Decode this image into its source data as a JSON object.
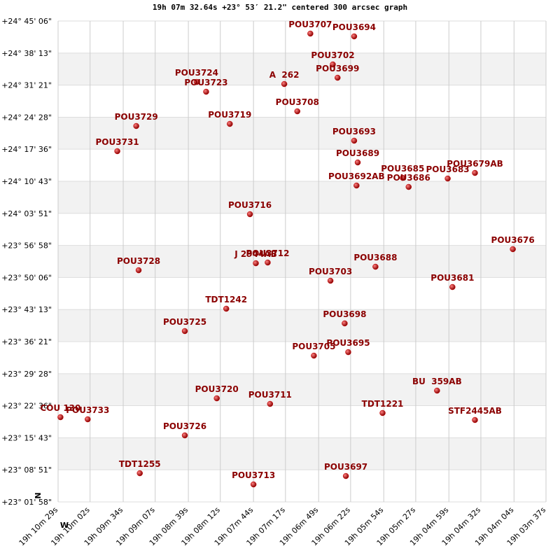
{
  "chart_data": {
    "type": "scatter",
    "title": "19h 07m 32.64s +23° 53′ 21.2\" centered 300 arcsec graph",
    "north": "N",
    "west": "W",
    "marker_color": "#cc0000",
    "label_color": "#8b0000",
    "band_color": "#f2f2f2",
    "grid": true,
    "xlim": [
      69029,
      68617
    ],
    "xticks": [
      {
        "value": 69029,
        "label": "19h 10m 29s"
      },
      {
        "value": 69002,
        "label": "19h 10m 02s"
      },
      {
        "value": 68974,
        "label": "19h 09m 34s"
      },
      {
        "value": 68947,
        "label": "19h 09m 07s"
      },
      {
        "value": 68919,
        "label": "19h 08m 39s"
      },
      {
        "value": 68892,
        "label": "19h 08m 12s"
      },
      {
        "value": 68864,
        "label": "19h 07m 44s"
      },
      {
        "value": 68837,
        "label": "19h 07m 17s"
      },
      {
        "value": 68809,
        "label": "19h 06m 49s"
      },
      {
        "value": 68782,
        "label": "19h 06m 22s"
      },
      {
        "value": 68754,
        "label": "19h 05m 54s"
      },
      {
        "value": 68727,
        "label": "19h 05m 27s"
      },
      {
        "value": 68699,
        "label": "19h 04m 59s"
      },
      {
        "value": 68672,
        "label": "19h 04m 32s"
      },
      {
        "value": 68644,
        "label": "19h 04m 04s"
      },
      {
        "value": 68617,
        "label": "19h 03m 37s"
      }
    ],
    "ylim": [
      82918,
      89106
    ],
    "yticks": [
      {
        "value": 89106,
        "label": "+24° 45' 06\""
      },
      {
        "value": 88693,
        "label": "+24° 38' 13\""
      },
      {
        "value": 88281,
        "label": "+24° 31' 21\""
      },
      {
        "value": 87868,
        "label": "+24° 24' 28\""
      },
      {
        "value": 87456,
        "label": "+24° 17' 36\""
      },
      {
        "value": 87043,
        "label": "+24° 10' 43\""
      },
      {
        "value": 86631,
        "label": "+24° 03' 51\""
      },
      {
        "value": 86218,
        "label": "+23° 56' 58\""
      },
      {
        "value": 85806,
        "label": "+23° 50' 06\""
      },
      {
        "value": 85393,
        "label": "+23° 43' 13\""
      },
      {
        "value": 84981,
        "label": "+23° 36' 21\""
      },
      {
        "value": 84568,
        "label": "+23° 29' 28\""
      },
      {
        "value": 84156,
        "label": "+23° 22' 36\""
      },
      {
        "value": 83743,
        "label": "+23° 15' 43\""
      },
      {
        "value": 83331,
        "label": "+23° 08' 51\""
      },
      {
        "value": 82918,
        "label": "+23° 01' 58\""
      }
    ],
    "points": [
      {
        "label": "POU3707",
        "x": 68816,
        "y": 88944
      },
      {
        "label": "POU3694",
        "x": 68779,
        "y": 88908
      },
      {
        "label": "POU3702",
        "x": 68797,
        "y": 88547
      },
      {
        "label": "POU3699",
        "x": 68793,
        "y": 88376
      },
      {
        "label": "A  262",
        "x": 68838,
        "y": 88295
      },
      {
        "label": "POU3724",
        "x": 68912,
        "y": 88322
      },
      {
        "label": "POU3723",
        "x": 68904,
        "y": 88196
      },
      {
        "label": "POU3708",
        "x": 68827,
        "y": 87944
      },
      {
        "label": "POU3719",
        "x": 68884,
        "y": 87782
      },
      {
        "label": "POU3729",
        "x": 68963,
        "y": 87755
      },
      {
        "label": "POU3731",
        "x": 68979,
        "y": 87431
      },
      {
        "label": "POU3693",
        "x": 68779,
        "y": 87566
      },
      {
        "label": "POU3689",
        "x": 68776,
        "y": 87286
      },
      {
        "label": "POU3692AB",
        "x": 68777,
        "y": 86989
      },
      {
        "label": "POU3685",
        "x": 68738,
        "y": 87088
      },
      {
        "label": "POU3686",
        "x": 68733,
        "y": 86971
      },
      {
        "label": "POU3683",
        "x": 68700,
        "y": 87079
      },
      {
        "label": "POU3679AB",
        "x": 68677,
        "y": 87151
      },
      {
        "label": "POU3716",
        "x": 68867,
        "y": 86620
      },
      {
        "label": "POU3676",
        "x": 68645,
        "y": 86170
      },
      {
        "label": "J 2944AB",
        "x": 68862,
        "y": 85989
      },
      {
        "label": "POU3712",
        "x": 68852,
        "y": 85998
      },
      {
        "label": "POU3728",
        "x": 68961,
        "y": 85899
      },
      {
        "label": "POU3688",
        "x": 68761,
        "y": 85944
      },
      {
        "label": "POU3703",
        "x": 68799,
        "y": 85764
      },
      {
        "label": "POU3681",
        "x": 68696,
        "y": 85683
      },
      {
        "label": "TDT1242",
        "x": 68887,
        "y": 85404
      },
      {
        "label": "POU3698",
        "x": 68787,
        "y": 85215
      },
      {
        "label": "POU3725",
        "x": 68922,
        "y": 85116
      },
      {
        "label": "POU3705",
        "x": 68813,
        "y": 84800
      },
      {
        "label": "POU3695",
        "x": 68784,
        "y": 84845
      },
      {
        "label": "BU  359AB",
        "x": 68709,
        "y": 84350
      },
      {
        "label": "POU3720",
        "x": 68895,
        "y": 84251
      },
      {
        "label": "POU3711",
        "x": 68850,
        "y": 84179
      },
      {
        "label": "COU 130",
        "x": 69027,
        "y": 84008
      },
      {
        "label": "POU3733",
        "x": 69004,
        "y": 83981
      },
      {
        "label": "TDT1221",
        "x": 68755,
        "y": 84062
      },
      {
        "label": "STF2445AB",
        "x": 68677,
        "y": 83972
      },
      {
        "label": "POU3726",
        "x": 68922,
        "y": 83774
      },
      {
        "label": "TDT1255",
        "x": 68960,
        "y": 83287
      },
      {
        "label": "POU3713",
        "x": 68864,
        "y": 83143
      },
      {
        "label": "POU3697",
        "x": 68786,
        "y": 83251
      }
    ]
  }
}
